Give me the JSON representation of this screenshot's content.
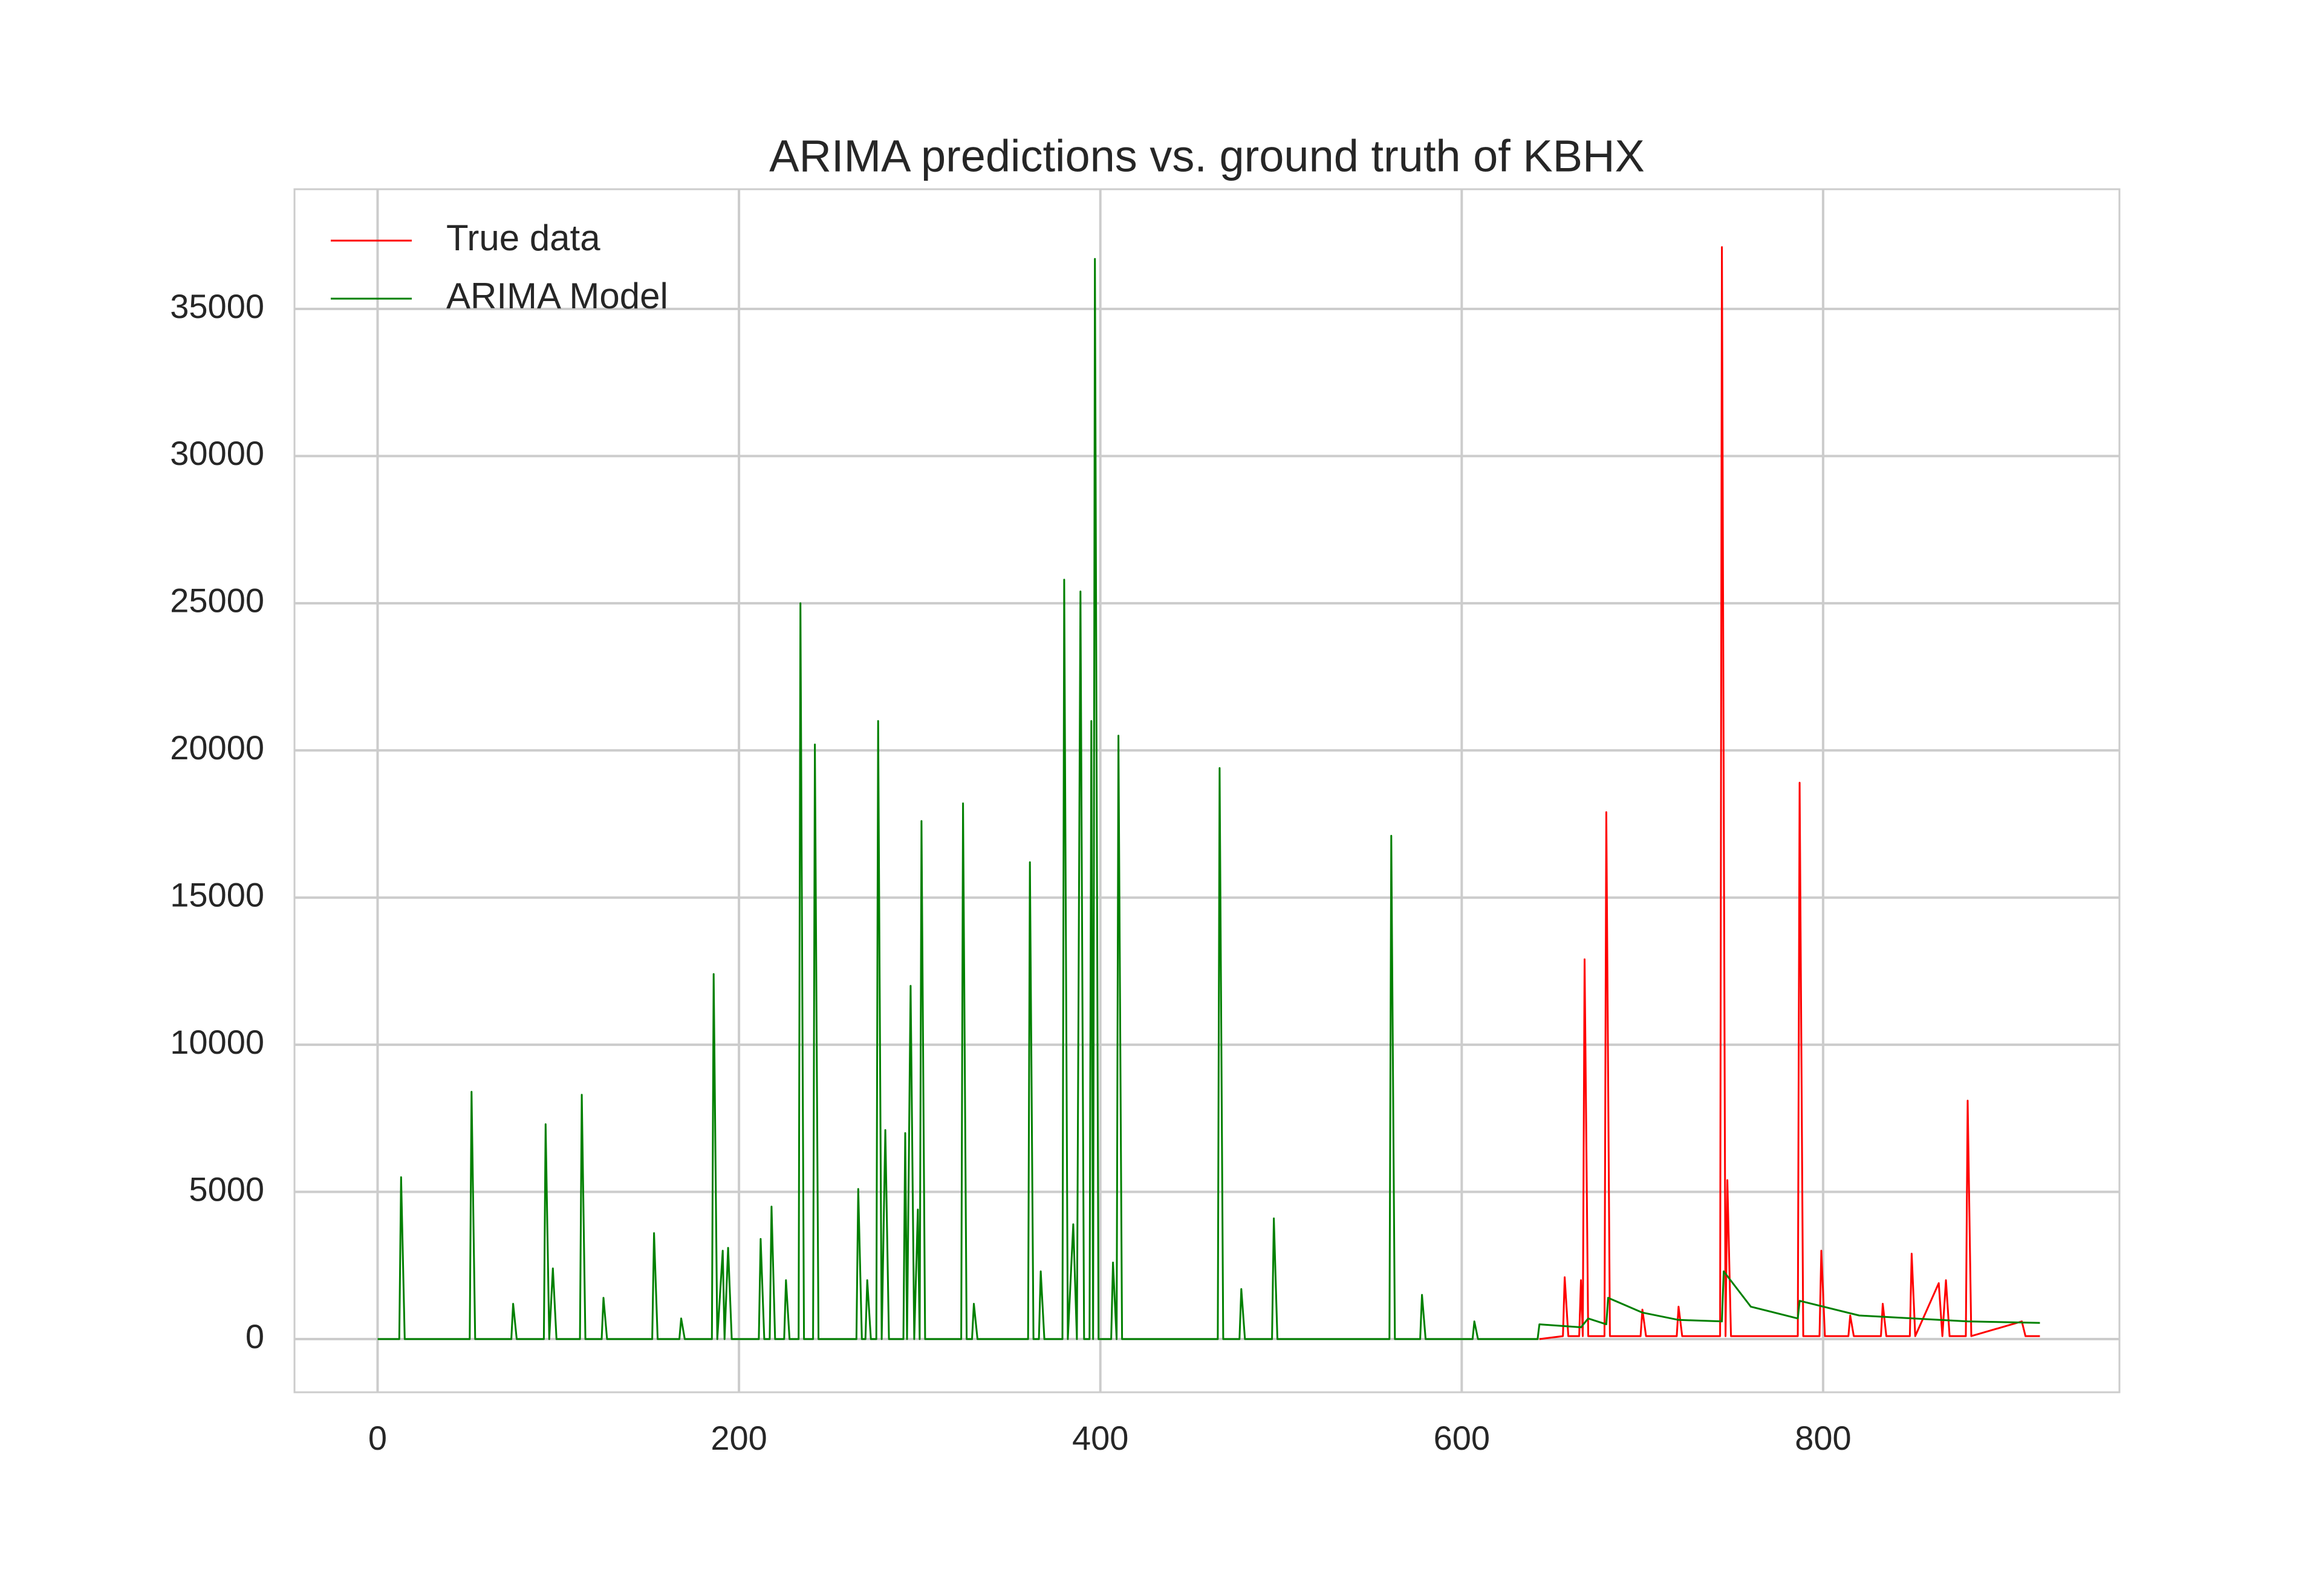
{
  "chart_data": {
    "type": "line",
    "title": "ARIMA predictions vs. ground truth of KBHX",
    "xlim": [
      -46,
      964
    ],
    "xticks": [
      0,
      200,
      400,
      600,
      800
    ],
    "ylim": [
      -1808,
      39067
    ],
    "yticks": [
      0,
      5000,
      10000,
      15000,
      20000,
      25000,
      30000,
      35000
    ],
    "grid": true,
    "legend": "upper left",
    "series": [
      {
        "name": "True data",
        "color": "#ff0000",
        "x": [
          643,
          656,
          657,
          659,
          665,
          666,
          667,
          668,
          670,
          679,
          680,
          682,
          699,
          700,
          702,
          719,
          720,
          722,
          743,
          744,
          746,
          747,
          749,
          786,
          787,
          789,
          798,
          799,
          801,
          814,
          815,
          817,
          832,
          833,
          835,
          848,
          849,
          851,
          864,
          866,
          868,
          870,
          879,
          880,
          882,
          910,
          912,
          920
        ],
        "values": [
          0,
          100,
          2100,
          100,
          100,
          2000,
          100,
          12900,
          100,
          100,
          17900,
          100,
          100,
          1000,
          100,
          100,
          1100,
          100,
          100,
          37100,
          100,
          5400,
          100,
          100,
          18900,
          100,
          100,
          3000,
          100,
          100,
          800,
          100,
          100,
          1200,
          100,
          100,
          2900,
          100,
          1900,
          100,
          2000,
          100,
          100,
          8100,
          100,
          600,
          100,
          100
        ]
      },
      {
        "name": "ARIMA Model",
        "color": "#008000",
        "x": [
          0,
          12,
          13,
          15,
          51,
          52,
          54,
          74,
          75,
          77,
          92,
          93,
          95,
          97,
          99,
          112,
          113,
          115,
          124,
          125,
          127,
          152,
          153,
          155,
          167,
          168,
          170,
          185,
          186,
          188,
          191,
          192,
          194,
          196,
          211,
          212,
          214,
          217,
          218,
          220,
          225,
          226,
          228,
          233,
          234,
          236,
          241,
          242,
          244,
          265,
          266,
          268,
          270,
          271,
          273,
          276,
          277,
          279,
          281,
          283,
          291,
          292,
          293,
          295,
          297,
          299,
          300,
          301,
          303,
          323,
          324,
          326,
          329,
          330,
          332,
          360,
          361,
          363,
          366,
          367,
          369,
          379,
          380,
          382,
          385,
          387,
          389,
          391,
          394,
          395,
          396,
          397,
          399,
          406,
          407,
          409,
          410,
          412,
          465,
          466,
          468,
          477,
          478,
          480,
          495,
          496,
          498,
          560,
          561,
          563,
          577,
          578,
          580,
          606,
          607,
          609,
          642,
          643,
          666,
          670,
          680,
          681,
          700,
          720,
          744,
          745,
          760,
          786,
          787,
          820,
          880,
          920
        ],
        "values": [
          0,
          0,
          5500,
          0,
          0,
          8400,
          0,
          0,
          1200,
          0,
          0,
          7300,
          0,
          2400,
          0,
          0,
          8300,
          0,
          0,
          1400,
          0,
          0,
          3600,
          0,
          0,
          700,
          0,
          0,
          12400,
          0,
          3000,
          0,
          3100,
          0,
          0,
          3400,
          0,
          0,
          4500,
          0,
          0,
          2000,
          0,
          0,
          25000,
          0,
          0,
          20200,
          0,
          0,
          5100,
          0,
          0,
          2000,
          0,
          0,
          21000,
          0,
          7100,
          0,
          0,
          7000,
          0,
          12000,
          0,
          4400,
          0,
          17600,
          0,
          0,
          18200,
          0,
          0,
          1200,
          0,
          0,
          16200,
          0,
          0,
          2300,
          0,
          0,
          25800,
          0,
          3900,
          0,
          25400,
          0,
          0,
          21000,
          0,
          36700,
          0,
          0,
          2600,
          0,
          20500,
          0,
          0,
          19400,
          0,
          0,
          1700,
          0,
          0,
          4100,
          0,
          0,
          17100,
          0,
          0,
          1500,
          0,
          0,
          600,
          0,
          0,
          500,
          400,
          700,
          500,
          1400,
          900,
          650,
          600,
          2300,
          1100,
          700,
          1300,
          800,
          600,
          550
        ]
      }
    ]
  }
}
